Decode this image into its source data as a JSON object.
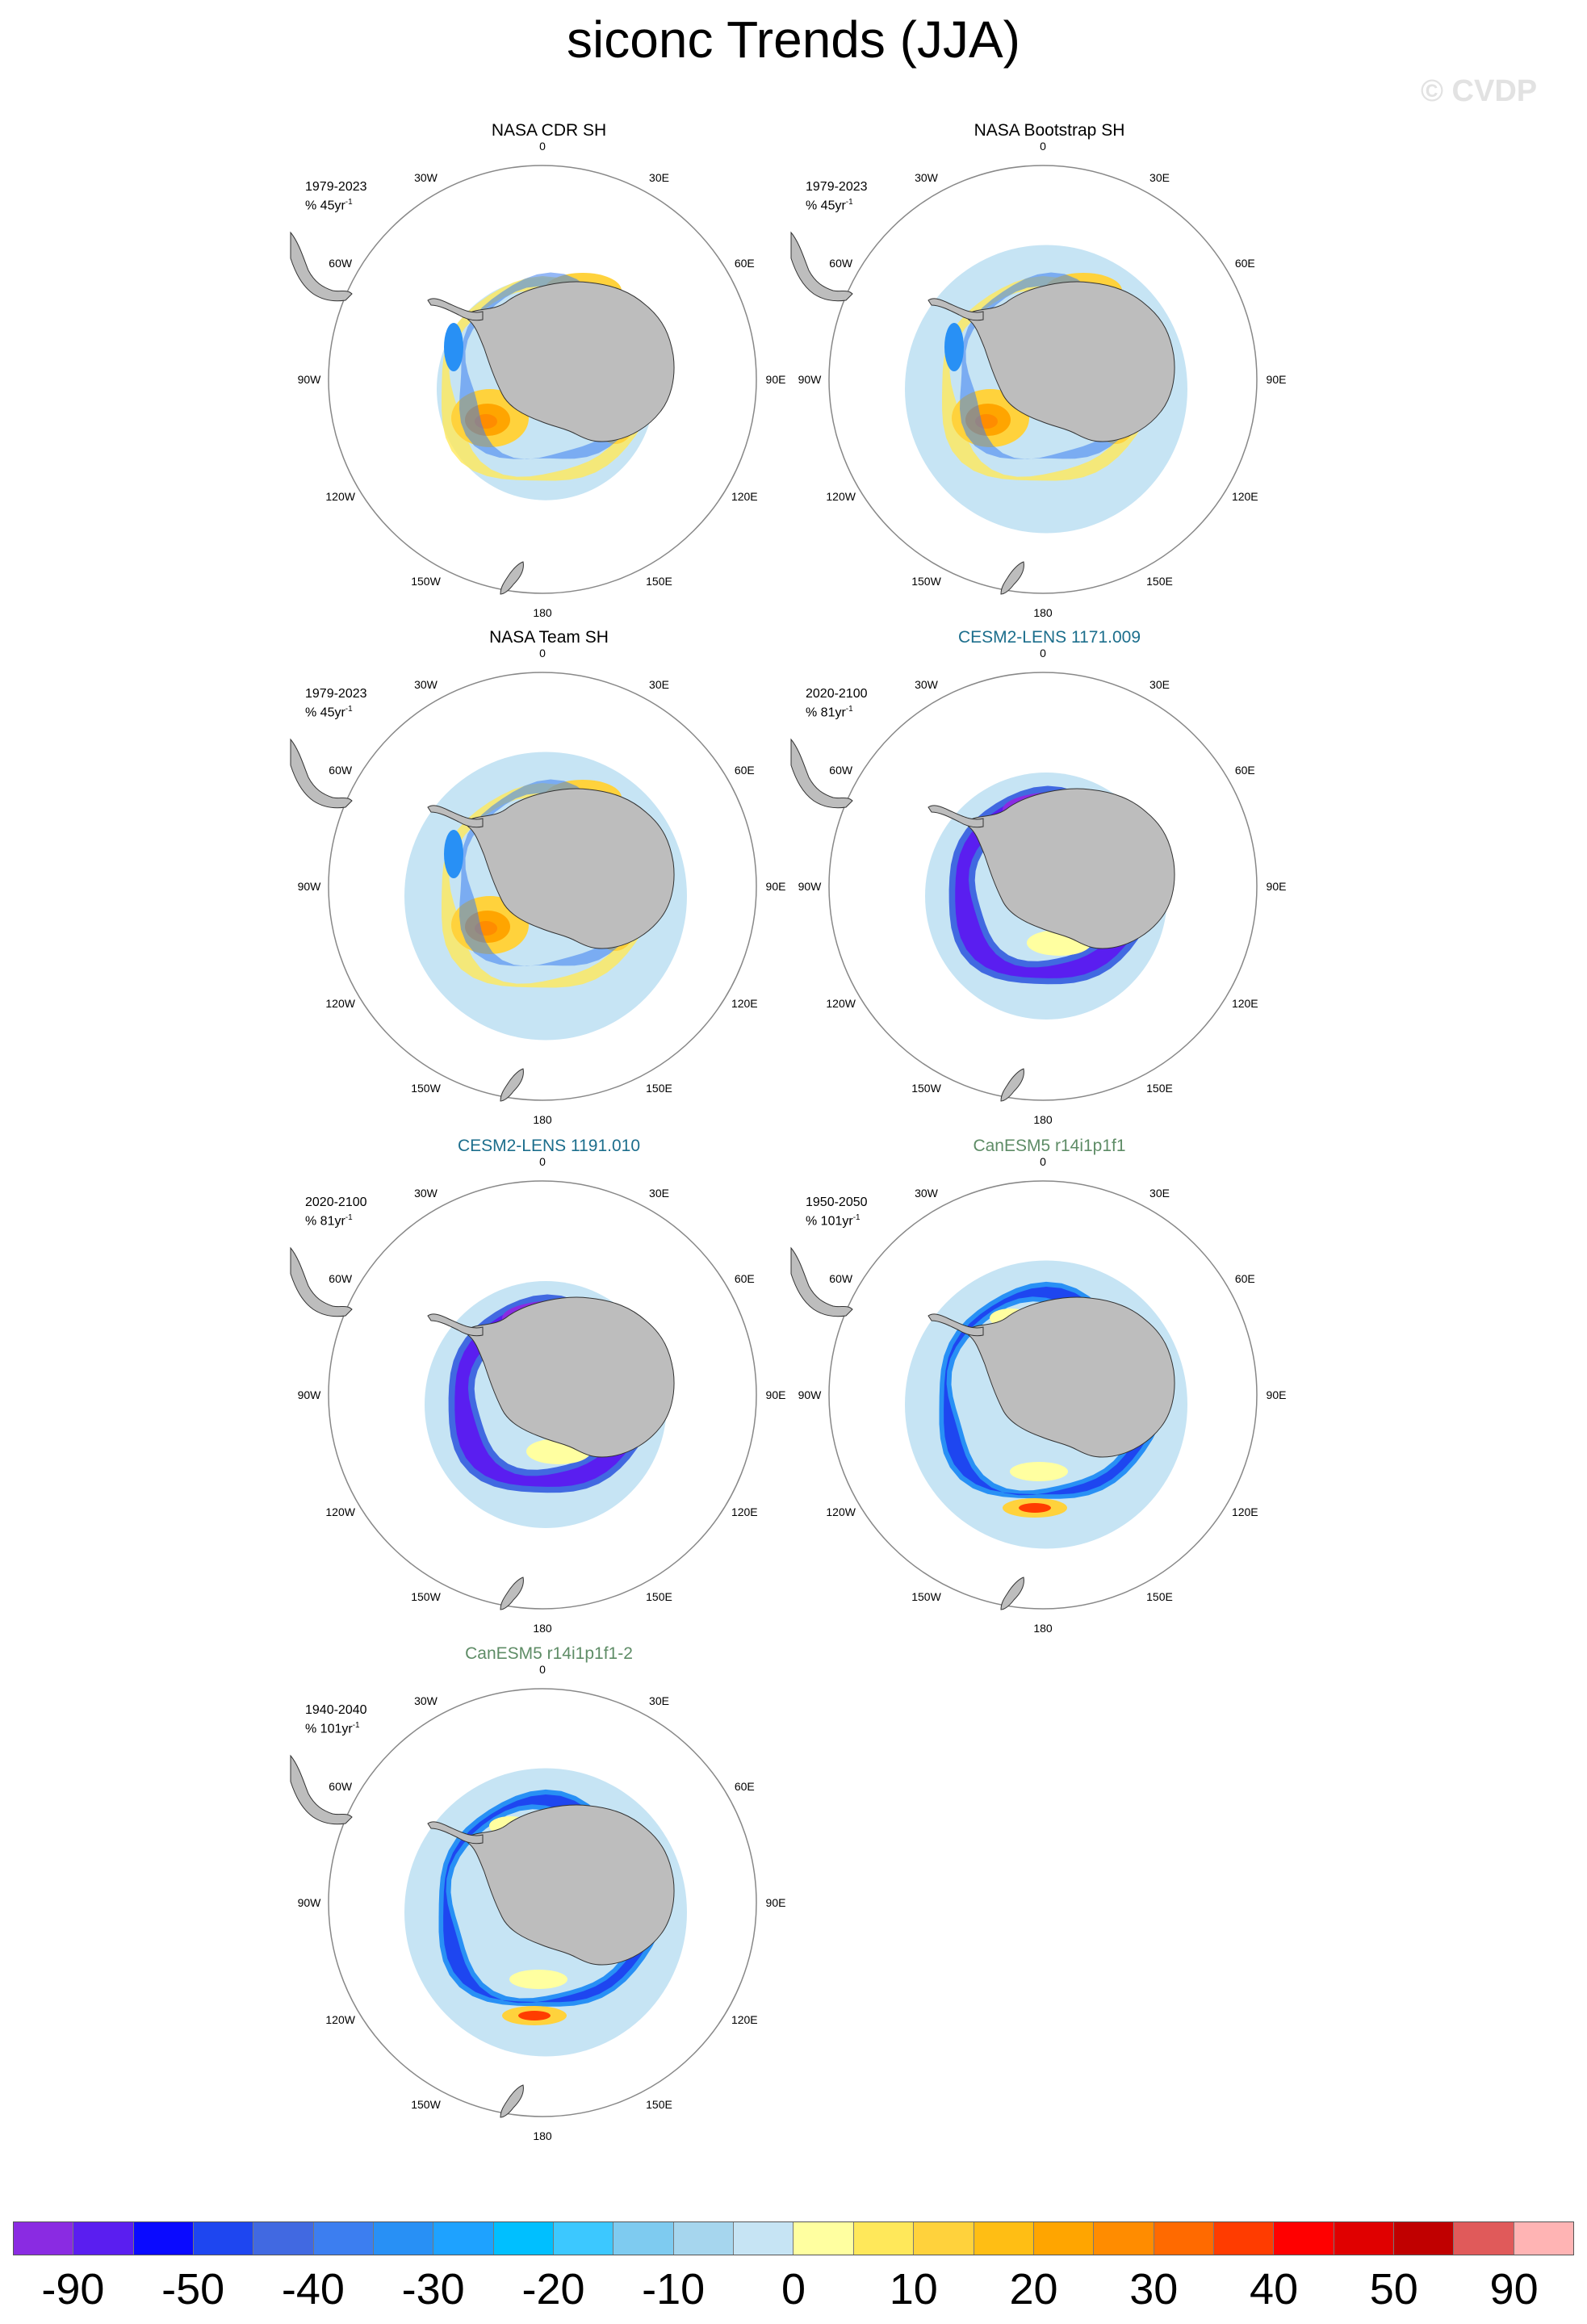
{
  "title": "siconc Trends (JJA)",
  "watermark": "© CVDP",
  "units_template": "% {n}yr",
  "lon_labels": [
    "0",
    "30E",
    "60E",
    "90E",
    "120E",
    "150E",
    "180",
    "150W",
    "120W",
    "90W",
    "60W",
    "30W"
  ],
  "panels": [
    {
      "name": "NASA CDR SH",
      "period": "1979-2023",
      "units": "% 45yr",
      "title_color": "#000000",
      "pattern": "obs"
    },
    {
      "name": "NASA Bootstrap SH",
      "period": "1979-2023",
      "units": "% 45yr",
      "title_color": "#000000",
      "pattern": "obs_wide"
    },
    {
      "name": "NASA Team SH",
      "period": "1979-2023",
      "units": "% 45yr",
      "title_color": "#000000",
      "pattern": "obs_wide"
    },
    {
      "name": "CESM2-LENS 1171.009",
      "period": "2020-2100",
      "units": "% 81yr",
      "title_color": "#1c6e8c",
      "pattern": "cesm"
    },
    {
      "name": "CESM2-LENS 1191.010",
      "period": "2020-2100",
      "units": "% 81yr",
      "title_color": "#1c6e8c",
      "pattern": "cesm"
    },
    {
      "name": "CanESM5 r14i1p1f1",
      "period": "1950-2050",
      "units": "% 101yr",
      "title_color": "#5e8c66",
      "pattern": "canesm"
    },
    {
      "name": "CanESM5 r14i1p1f1-2",
      "period": "1940-2040",
      "units": "% 101yr",
      "title_color": "#5e8c66",
      "pattern": "canesm"
    }
  ],
  "colorbar": {
    "colors": [
      "#8a2be2",
      "#5a1ef0",
      "#0a0aff",
      "#1e46f0",
      "#4169e1",
      "#3c7ef0",
      "#2890f5",
      "#1ea2ff",
      "#00bfff",
      "#3cc8ff",
      "#7ecbf0",
      "#a6d6ee",
      "#c6e4f4",
      "#ffffa0",
      "#ffe85a",
      "#ffd23c",
      "#ffbe14",
      "#ffa500",
      "#ff8c00",
      "#ff6a00",
      "#ff3c00",
      "#ff0000",
      "#e00000",
      "#c00000",
      "#e05a5a",
      "#ffb4b4"
    ],
    "labels": [
      "-90",
      "-50",
      "-40",
      "-30",
      "-20",
      "-10",
      "0",
      "10",
      "20",
      "30",
      "40",
      "50",
      "90"
    ],
    "label_boundaries": [
      1,
      3,
      5,
      7,
      9,
      11,
      13,
      15,
      17,
      19,
      21,
      23,
      25
    ]
  }
}
